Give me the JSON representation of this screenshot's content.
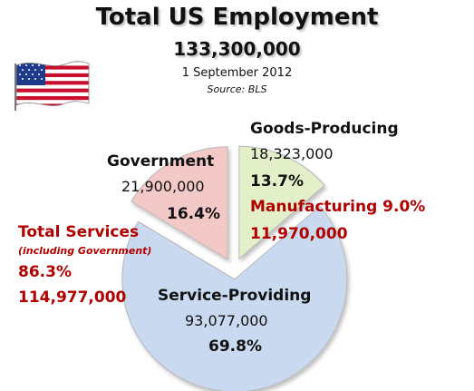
{
  "header": {
    "title": "Total US Employment",
    "total": "133,300,000",
    "date": "1 September 2012",
    "source": "Source: BLS"
  },
  "chart_data": {
    "type": "pie",
    "title": "Total US Employment",
    "slices": [
      {
        "name": "Goods-Producing",
        "value_text": "18,323,000",
        "percent_text": "13.7%",
        "percent": 13.7,
        "color": "#e3efc8"
      },
      {
        "name": "Service-Providing",
        "value_text": "93,077,000",
        "percent_text": "69.8%",
        "percent": 69.8,
        "color": "#c9d9ef"
      },
      {
        "name": "Government",
        "value_text": "21,900,000",
        "percent_text": "16.4%",
        "percent": 16.4,
        "color": "#f3c9c7"
      }
    ],
    "annotations": {
      "manufacturing": {
        "label": "Manufacturing 9.0%",
        "value": "11,970,000",
        "color": "#b00000"
      },
      "total_services": {
        "label": "Total Services",
        "note": "(including Government)",
        "percent": "86.3%",
        "value": "114,977,000",
        "color": "#b00000"
      }
    }
  },
  "flag_icon": "us-flag-icon"
}
